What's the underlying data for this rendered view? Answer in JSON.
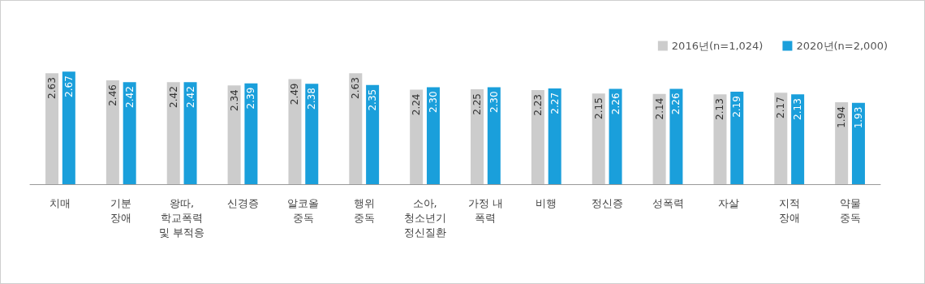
{
  "chart_data": {
    "type": "bar",
    "categories": [
      "치매",
      "기분\n장애",
      "왕따,\n학교폭력\n및 부적응",
      "신경증",
      "알코올\n중독",
      "행위\n중독",
      "소아,\n청소년기\n정신질환",
      "가정 내\n폭력",
      "비행",
      "정신증",
      "성폭력",
      "자살",
      "지적\n장애",
      "약물\n중독"
    ],
    "series": [
      {
        "name": "2016년(n=1,024)",
        "color": "#cccccc",
        "values": [
          2.63,
          2.46,
          2.42,
          2.34,
          2.49,
          2.63,
          2.24,
          2.25,
          2.23,
          2.15,
          2.14,
          2.13,
          2.17,
          1.94
        ],
        "value_labels": [
          "2.63",
          "2.46",
          "2.42",
          "2.34",
          "2.49",
          "2.63",
          "2.24",
          "2.25",
          "2.23",
          "2.15",
          "2.14",
          "2.13",
          "2.17",
          "1.94"
        ]
      },
      {
        "name": "2020년(n=2,000)",
        "color": "#1a9fdb",
        "values": [
          2.67,
          2.42,
          2.42,
          2.39,
          2.38,
          2.35,
          2.3,
          2.3,
          2.27,
          2.26,
          2.26,
          2.19,
          2.13,
          1.93
        ],
        "value_labels": [
          "2.67",
          "2.42",
          "2.42",
          "2.39",
          "2.38",
          "2.35",
          "2.30",
          "2.30",
          "2.27",
          "2.26",
          "2.26",
          "2.19",
          "2.13",
          "1.93"
        ]
      }
    ],
    "tick_labels": "x",
    "legend": "top right"
  }
}
